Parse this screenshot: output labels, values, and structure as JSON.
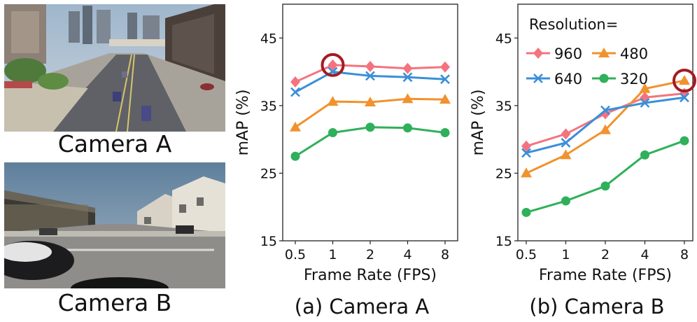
{
  "photos": [
    {
      "caption": "Camera A"
    },
    {
      "caption": "Camera B"
    }
  ],
  "colors": {
    "960": "#f4737f",
    "640": "#3a8fd9",
    "480": "#f1922d",
    "320": "#2fb05a",
    "highlight": "#a31c22"
  },
  "chart_data": [
    {
      "type": "line",
      "caption": "(a) Camera A",
      "xlabel": "Frame Rate (FPS)",
      "ylabel": "mAP (%)",
      "categories": [
        "0.5",
        "1",
        "2",
        "4",
        "8"
      ],
      "ylim": [
        15,
        50
      ],
      "yticks": [
        15,
        25,
        35,
        45
      ],
      "grid": false,
      "series": [
        {
          "name": "960",
          "marker": "diamond",
          "values": [
            38.5,
            41.0,
            40.8,
            40.5,
            40.7
          ]
        },
        {
          "name": "640",
          "marker": "x",
          "values": [
            37.0,
            40.0,
            39.4,
            39.2,
            38.9
          ]
        },
        {
          "name": "480",
          "marker": "triangle",
          "values": [
            31.8,
            35.6,
            35.5,
            36.0,
            35.9
          ]
        },
        {
          "name": "320",
          "marker": "circle",
          "values": [
            27.5,
            31.0,
            31.8,
            31.7,
            31.0
          ]
        }
      ],
      "highlight": {
        "category": "1",
        "value": 41.0
      }
    },
    {
      "type": "line",
      "caption": "(b) Camera B",
      "xlabel": "Frame Rate (FPS)",
      "ylabel": "mAP (%)",
      "categories": [
        "0.5",
        "1",
        "2",
        "4",
        "8"
      ],
      "ylim": [
        15,
        50
      ],
      "yticks": [
        15,
        25,
        35,
        45
      ],
      "grid": false,
      "legend": {
        "title": "Resolution=",
        "placement": "top-left"
      },
      "series": [
        {
          "name": "960",
          "marker": "diamond",
          "values": [
            29.0,
            30.8,
            33.8,
            36.2,
            36.8
          ]
        },
        {
          "name": "480",
          "marker": "triangle",
          "values": [
            25.0,
            27.7,
            31.4,
            37.5,
            38.7
          ]
        },
        {
          "name": "640",
          "marker": "x",
          "values": [
            28.0,
            29.5,
            34.3,
            35.4,
            36.2
          ]
        },
        {
          "name": "320",
          "marker": "circle",
          "values": [
            19.2,
            20.9,
            23.1,
            27.7,
            29.8
          ]
        }
      ],
      "highlight": {
        "category": "8",
        "value": 38.7
      }
    }
  ]
}
